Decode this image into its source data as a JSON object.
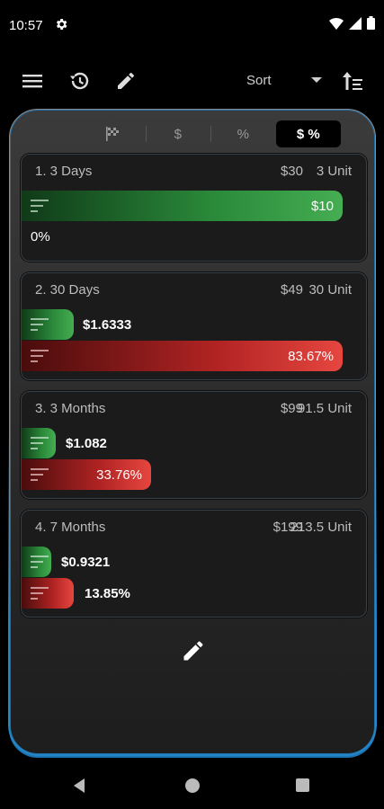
{
  "status": {
    "time": "10:57"
  },
  "toolbar": {
    "sort_label": "Sort"
  },
  "tabs": [
    {
      "label": "",
      "icon": "checkered-flag-icon"
    },
    {
      "label": "$"
    },
    {
      "label": "%"
    },
    {
      "label": "$ %",
      "active": true
    }
  ],
  "cards": [
    {
      "title": "1. 3 Days",
      "price": "$30",
      "units": "3 Unit",
      "dollar_value": "$10",
      "percent_value": "0%",
      "dollar_fill": 0.93,
      "percent_fill": 0.0
    },
    {
      "title": "2. 30 Days",
      "price": "$49",
      "units": "30 Unit",
      "dollar_value": "$1.6333",
      "percent_value": "83.67%",
      "dollar_fill": 0.15,
      "percent_fill": 0.8367
    },
    {
      "title": "3. 3 Months",
      "price": "$99",
      "units": "91.5 Unit",
      "dollar_value": "$1.082",
      "percent_value": "33.76%",
      "dollar_fill": 0.1,
      "percent_fill": 0.3376
    },
    {
      "title": "4. 7 Months",
      "price": "$199",
      "units": "213.5 Unit",
      "dollar_value": "$0.9321",
      "percent_value": "13.85%",
      "dollar_fill": 0.09,
      "percent_fill": 0.1385
    }
  ],
  "colors": {
    "green": "#45ad52",
    "red": "#e6463f",
    "accent_border": "#2386c8"
  }
}
